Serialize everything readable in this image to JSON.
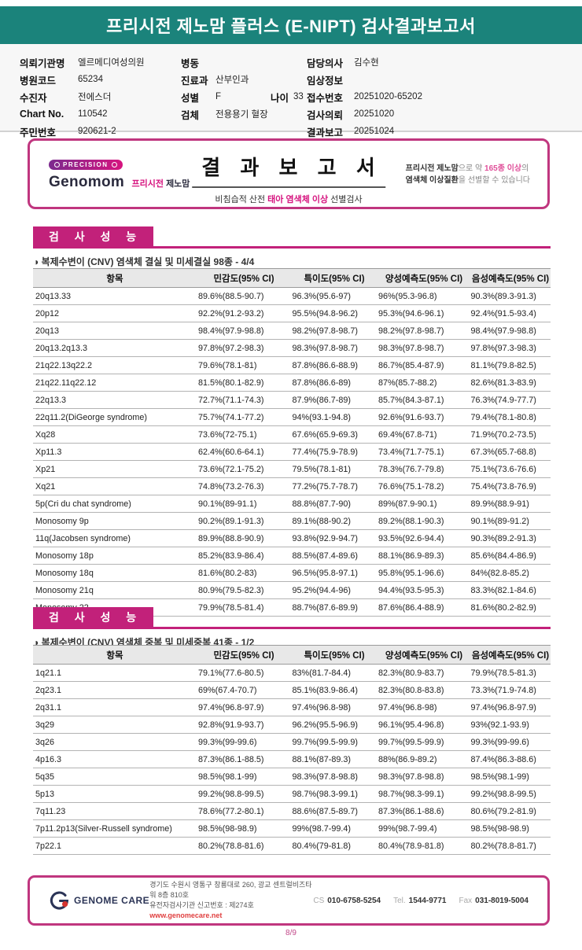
{
  "colors": {
    "teal": "#1b837b",
    "magenta": "#c2217a",
    "border_magenta": "#c0367f"
  },
  "report": {
    "title": "프리시전 제노맘 플러스 (E-NIPT) 검사결과보고서",
    "page": "8/9"
  },
  "patient_info": {
    "col1": [
      {
        "label": "의뢰기관명",
        "value": "엘르메디여성의원"
      },
      {
        "label": "병원코드",
        "value": "65234"
      },
      {
        "label": "수진자",
        "value": "전에스더"
      },
      {
        "label": "Chart No.",
        "value": "110542"
      },
      {
        "label": "주민번호",
        "value": "920621-2"
      }
    ],
    "col2": [
      {
        "label": "병동",
        "value": ""
      },
      {
        "label": "진료과",
        "value": "산부인과"
      },
      {
        "label": "성별",
        "value": "F",
        "label2": "나이",
        "value2": "33"
      },
      {
        "label": "검체",
        "value": "전용용기 혈장"
      }
    ],
    "col3": [
      {
        "label": "담당의사",
        "value": "김수현"
      },
      {
        "label": "임상정보",
        "value": ""
      },
      {
        "label": "접수번호",
        "value": "20251020-65202"
      },
      {
        "label": "검사의뢰",
        "value": "20251020"
      },
      {
        "label": "결과보고",
        "value": "20251024"
      }
    ]
  },
  "banner": {
    "badge": "PRECISION",
    "brand_en": "Genomom",
    "brand_kr1": "프리시전",
    "brand_kr2": "제노맘",
    "title": "결 과 보 고 서",
    "sub_pre": "비침습적 산전 ",
    "sub_accent": "태아 염색체 이상",
    "sub_post": " 선별검사",
    "note1_bold": "프리시전 제노맘",
    "note1_mid": "으로 약 ",
    "note1_accent": "165종 이상",
    "note1_post": "의",
    "note2_bold": "염색체 이상질환",
    "note2_post": "을 선별할 수 있습니다"
  },
  "sections": [
    {
      "header": "검 사 성 능",
      "subtitle": "◑ 복제수변이 (CNV) 염색체 결실 및 미세결실 98종 - 4/4",
      "columns": [
        "항목",
        "민감도(95% CI)",
        "특이도(95% CI)",
        "양성예측도(95% CI)",
        "음성예측도(95% CI)"
      ],
      "rows": [
        [
          "20q13.33",
          "89.6%(88.5-90.7)",
          "96.3%(95.6-97)",
          "96%(95.3-96.8)",
          "90.3%(89.3-91.3)"
        ],
        [
          "20p12",
          "92.2%(91.2-93.2)",
          "95.5%(94.8-96.2)",
          "95.3%(94.6-96.1)",
          "92.4%(91.5-93.4)"
        ],
        [
          "20q13",
          "98.4%(97.9-98.8)",
          "98.2%(97.8-98.7)",
          "98.2%(97.8-98.7)",
          "98.4%(97.9-98.8)"
        ],
        [
          "20q13.2q13.3",
          "97.8%(97.2-98.3)",
          "98.3%(97.8-98.7)",
          "98.3%(97.8-98.7)",
          "97.8%(97.3-98.3)"
        ],
        [
          "21q22.13q22.2",
          "79.6%(78.1-81)",
          "87.8%(86.6-88.9)",
          "86.7%(85.4-87.9)",
          "81.1%(79.8-82.5)"
        ],
        [
          "21q22.11q22.12",
          "81.5%(80.1-82.9)",
          "87.8%(86.6-89)",
          "87%(85.7-88.2)",
          "82.6%(81.3-83.9)"
        ],
        [
          "22q13.3",
          "72.7%(71.1-74.3)",
          "87.9%(86.7-89)",
          "85.7%(84.3-87.1)",
          "76.3%(74.9-77.7)"
        ],
        [
          "22q11.2(DiGeorge syndrome)",
          "75.7%(74.1-77.2)",
          "94%(93.1-94.8)",
          "92.6%(91.6-93.7)",
          "79.4%(78.1-80.8)"
        ],
        [
          "Xq28",
          "73.6%(72-75.1)",
          "67.6%(65.9-69.3)",
          "69.4%(67.8-71)",
          "71.9%(70.2-73.5)"
        ],
        [
          "Xp11.3",
          "62.4%(60.6-64.1)",
          "77.4%(75.9-78.9)",
          "73.4%(71.7-75.1)",
          "67.3%(65.7-68.8)"
        ],
        [
          "Xp21",
          "73.6%(72.1-75.2)",
          "79.5%(78.1-81)",
          "78.3%(76.7-79.8)",
          "75.1%(73.6-76.6)"
        ],
        [
          "Xq21",
          "74.8%(73.2-76.3)",
          "77.2%(75.7-78.7)",
          "76.6%(75.1-78.2)",
          "75.4%(73.8-76.9)"
        ],
        [
          "5p(Cri du chat syndrome)",
          "90.1%(89-91.1)",
          "88.8%(87.7-90)",
          "89%(87.9-90.1)",
          "89.9%(88.9-91)"
        ],
        [
          "Monosomy 9p",
          "90.2%(89.1-91.3)",
          "89.1%(88-90.2)",
          "89.2%(88.1-90.3)",
          "90.1%(89-91.2)"
        ],
        [
          "11q(Jacobsen syndrome)",
          "89.9%(88.8-90.9)",
          "93.8%(92.9-94.7)",
          "93.5%(92.6-94.4)",
          "90.3%(89.2-91.3)"
        ],
        [
          "Monosomy 18p",
          "85.2%(83.9-86.4)",
          "88.5%(87.4-89.6)",
          "88.1%(86.9-89.3)",
          "85.6%(84.4-86.9)"
        ],
        [
          "Monosomy 18q",
          "81.6%(80.2-83)",
          "96.5%(95.8-97.1)",
          "95.8%(95.1-96.6)",
          "84%(82.8-85.2)"
        ],
        [
          "Monosomy 21q",
          "80.9%(79.5-82.3)",
          "95.2%(94.4-96)",
          "94.4%(93.5-95.3)",
          "83.3%(82.1-84.6)"
        ],
        [
          "Monosomy 22",
          "79.9%(78.5-81.4)",
          "88.7%(87.6-89.9)",
          "87.6%(86.4-88.9)",
          "81.6%(80.2-82.9)"
        ]
      ]
    },
    {
      "header": "검 사 성 능",
      "subtitle": "◑ 복제수변이 (CNV) 염색체 중복 및 미세중복 41종 - 1/2",
      "columns": [
        "항목",
        "민감도(95% CI)",
        "특이도(95% CI)",
        "양성예측도(95% CI)",
        "음성예측도(95% CI)"
      ],
      "rows": [
        [
          "1q21.1",
          "79.1%(77.6-80.5)",
          "83%(81.7-84.4)",
          "82.3%(80.9-83.7)",
          "79.9%(78.5-81.3)"
        ],
        [
          "2q23.1",
          "69%(67.4-70.7)",
          "85.1%(83.9-86.4)",
          "82.3%(80.8-83.8)",
          "73.3%(71.9-74.8)"
        ],
        [
          "2q31.1",
          "97.4%(96.8-97.9)",
          "97.4%(96.8-98)",
          "97.4%(96.8-98)",
          "97.4%(96.8-97.9)"
        ],
        [
          "3q29",
          "92.8%(91.9-93.7)",
          "96.2%(95.5-96.9)",
          "96.1%(95.4-96.8)",
          "93%(92.1-93.9)"
        ],
        [
          "3q26",
          "99.3%(99-99.6)",
          "99.7%(99.5-99.9)",
          "99.7%(99.5-99.9)",
          "99.3%(99-99.6)"
        ],
        [
          "4p16.3",
          "87.3%(86.1-88.5)",
          "88.1%(87-89.3)",
          "88%(86.9-89.2)",
          "87.4%(86.3-88.6)"
        ],
        [
          "5q35",
          "98.5%(98.1-99)",
          "98.3%(97.8-98.8)",
          "98.3%(97.8-98.8)",
          "98.5%(98.1-99)"
        ],
        [
          "5p13",
          "99.2%(98.8-99.5)",
          "98.7%(98.3-99.1)",
          "98.7%(98.3-99.1)",
          "99.2%(98.8-99.5)"
        ],
        [
          "7q11.23",
          "78.6%(77.2-80.1)",
          "88.6%(87.5-89.7)",
          "87.3%(86.1-88.6)",
          "80.6%(79.2-81.9)"
        ],
        [
          "7p11.2p13(Silver-Russell syndrome)",
          "98.5%(98-98.9)",
          "99%(98.7-99.4)",
          "99%(98.7-99.4)",
          "98.5%(98-98.9)"
        ],
        [
          "7p22.1",
          "80.2%(78.8-81.6)",
          "80.4%(79-81.8)",
          "80.4%(78.9-81.8)",
          "80.2%(78.8-81.7)"
        ]
      ]
    }
  ],
  "footer": {
    "company": "GENOME CARE",
    "address1": "경기도 수원시 영통구 창룡대로 260, 광교 센트럴비즈타워 8층 810호",
    "address2": "유전자검사기관 신고번호 : 제274호",
    "url": "www.genomecare.net",
    "contacts": [
      {
        "label": "CS",
        "value": "010-6758-5254"
      },
      {
        "label": "Tel.",
        "value": "1544-9771"
      },
      {
        "label": "Fax",
        "value": "031-8019-5004"
      }
    ]
  }
}
